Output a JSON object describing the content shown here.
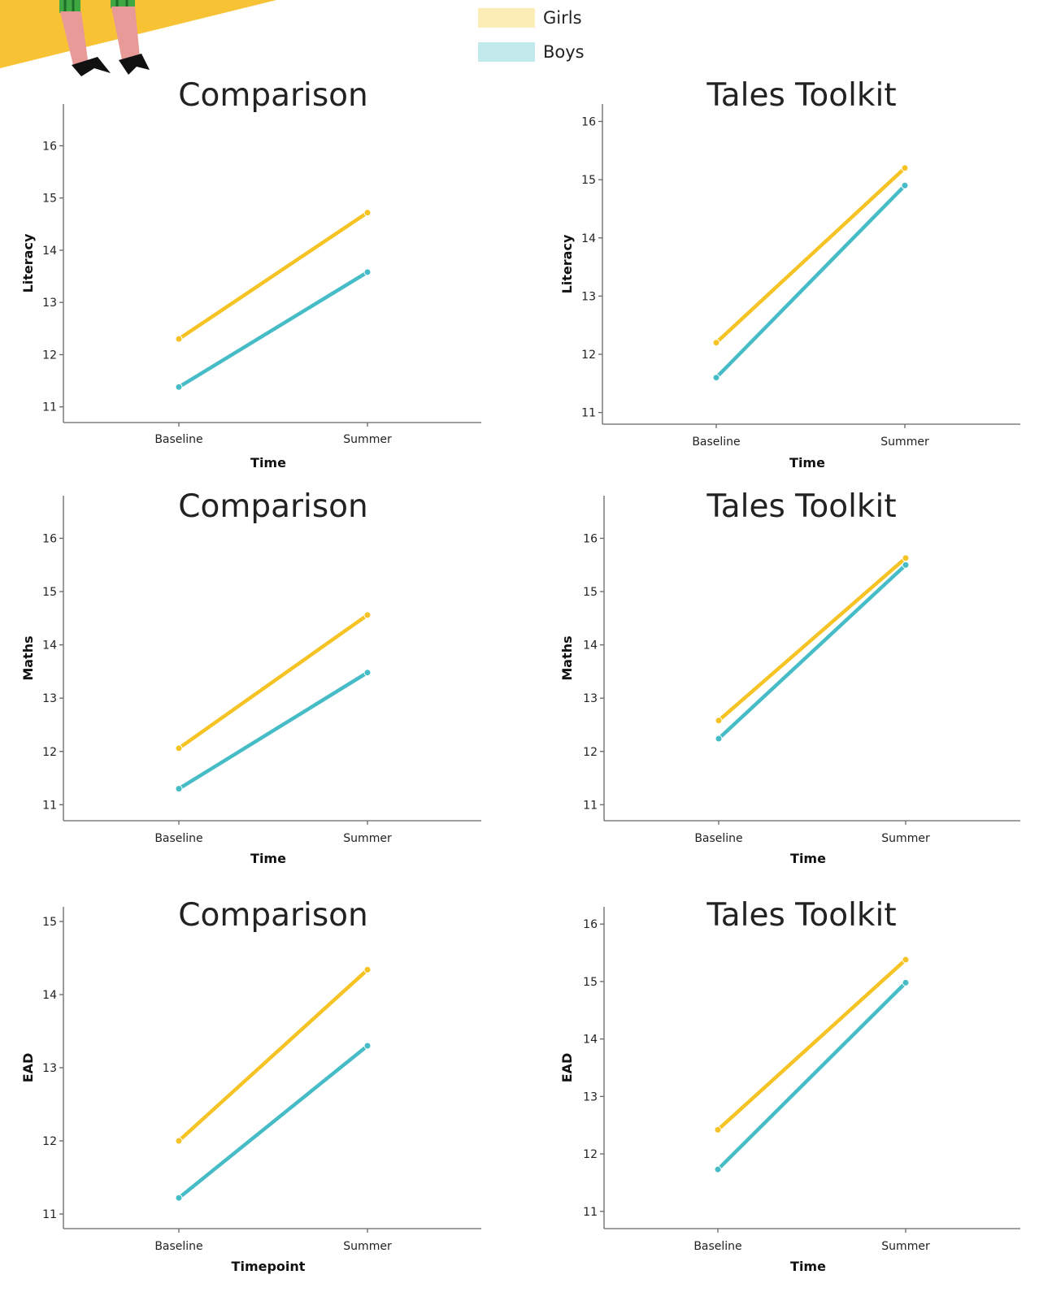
{
  "colors": {
    "girls": "#F5C324",
    "boys": "#45BCC6",
    "girls_swatch": "#FCECB5",
    "boys_swatch": "#C2EAEC",
    "accent": "#F7C335"
  },
  "legend": [
    {
      "label": "Girls",
      "color": "#FCECB5"
    },
    {
      "label": "Boys",
      "color": "#C2EAEC"
    }
  ],
  "decor": {
    "illustration": "cartoon-legs-with-hooves-icon"
  },
  "chart_data": [
    {
      "type": "line",
      "title": "Comparison",
      "xlabel": "Time",
      "ylabel": "Literacy",
      "categories": [
        "Baseline",
        "Summer"
      ],
      "ylim": [
        10.7,
        16.8
      ],
      "yticks": [
        11,
        12,
        13,
        14,
        15,
        16
      ],
      "series": [
        {
          "name": "Girls",
          "values": [
            12.3,
            14.72
          ]
        },
        {
          "name": "Boys",
          "values": [
            11.38,
            13.58
          ]
        }
      ]
    },
    {
      "type": "line",
      "title": "Tales Toolkit",
      "xlabel": "Time",
      "ylabel": "Literacy",
      "categories": [
        "Baseline",
        "Summer"
      ],
      "ylim": [
        10.8,
        16.3
      ],
      "yticks": [
        11,
        12,
        13,
        14,
        15,
        16
      ],
      "series": [
        {
          "name": "Girls",
          "values": [
            12.2,
            15.2
          ]
        },
        {
          "name": "Boys",
          "values": [
            11.6,
            14.9
          ]
        }
      ]
    },
    {
      "type": "line",
      "title": "Comparison",
      "xlabel": "Time",
      "ylabel": "Maths",
      "categories": [
        "Baseline",
        "Summer"
      ],
      "ylim": [
        10.7,
        16.8
      ],
      "yticks": [
        11,
        12,
        13,
        14,
        15,
        16
      ],
      "series": [
        {
          "name": "Girls",
          "values": [
            12.06,
            14.56
          ]
        },
        {
          "name": "Boys",
          "values": [
            11.3,
            13.48
          ]
        }
      ]
    },
    {
      "type": "line",
      "title": "Tales Toolkit",
      "xlabel": "Time",
      "ylabel": "Maths",
      "categories": [
        "Baseline",
        "Summer"
      ],
      "ylim": [
        10.7,
        16.8
      ],
      "yticks": [
        11,
        12,
        13,
        14,
        15,
        16
      ],
      "series": [
        {
          "name": "Girls",
          "values": [
            12.58,
            15.63
          ]
        },
        {
          "name": "Boys",
          "values": [
            12.24,
            15.5
          ]
        }
      ]
    },
    {
      "type": "line",
      "title": "Comparison",
      "xlabel": "Timepoint",
      "ylabel": "EAD",
      "categories": [
        "Baseline",
        "Summer"
      ],
      "ylim": [
        10.8,
        15.2
      ],
      "yticks": [
        11,
        12,
        13,
        14,
        15
      ],
      "series": [
        {
          "name": "Girls",
          "values": [
            12.0,
            14.34
          ]
        },
        {
          "name": "Boys",
          "values": [
            11.22,
            13.3
          ]
        }
      ]
    },
    {
      "type": "line",
      "title": "Tales Toolkit",
      "xlabel": "Time",
      "ylabel": "EAD",
      "categories": [
        "Baseline",
        "Summer"
      ],
      "ylim": [
        10.7,
        16.3
      ],
      "yticks": [
        11,
        12,
        13,
        14,
        15,
        16
      ],
      "series": [
        {
          "name": "Girls",
          "values": [
            12.42,
            15.38
          ]
        },
        {
          "name": "Boys",
          "values": [
            11.73,
            14.98
          ]
        }
      ]
    }
  ]
}
